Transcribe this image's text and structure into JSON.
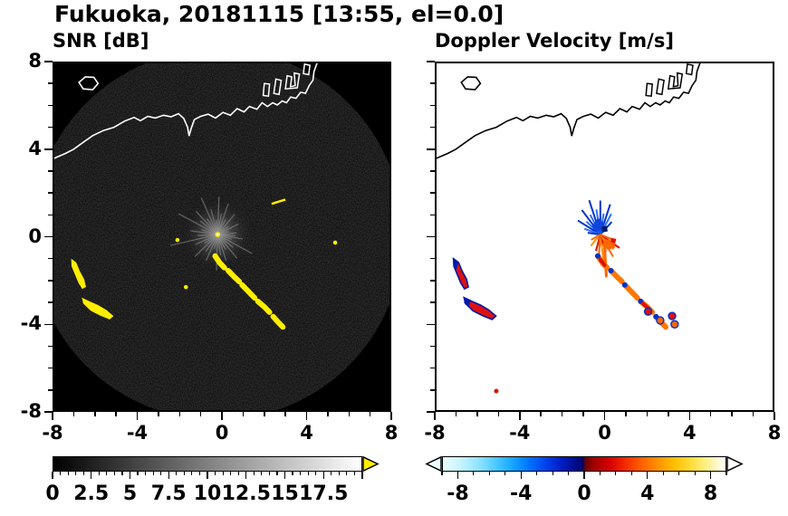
{
  "title": "Fukuoka, 20181115 [13:55, el=0.0]",
  "panels": {
    "snr": {
      "label": "SNR [dB]",
      "bg": "#000000",
      "coast_color": "#ffffff",
      "axis_ticks": [
        -8,
        -4,
        0,
        4,
        8
      ],
      "axis_range": [
        -8,
        8
      ]
    },
    "vel": {
      "label": "Doppler Velocity [m/s]",
      "bg": "#ffffff",
      "coast_color": "#000000",
      "axis_ticks": [
        -8,
        -4,
        0,
        4,
        8
      ],
      "axis_range": [
        -8,
        8
      ]
    }
  },
  "colorbars": {
    "snr": {
      "range": [
        0,
        20
      ],
      "major_step": 2.5,
      "minor_step": 0.5,
      "labels": [
        0,
        2.5,
        5,
        7.5,
        10,
        12.5,
        15,
        17.5
      ],
      "gradient": [
        [
          0,
          "#000000"
        ],
        [
          100,
          "#ffffff"
        ]
      ],
      "over_arrow_color": "#ffee00"
    },
    "vel": {
      "range": [
        -9,
        9
      ],
      "major_step": 4,
      "minor_step": 1,
      "labels": [
        -8,
        -4,
        0,
        4,
        8
      ],
      "gradient": [
        [
          0,
          "#eaffff"
        ],
        [
          6,
          "#c8f4ff"
        ],
        [
          12,
          "#96e6ff"
        ],
        [
          18,
          "#55ccff"
        ],
        [
          24,
          "#19aaff"
        ],
        [
          30,
          "#0077ff"
        ],
        [
          36,
          "#0044ee"
        ],
        [
          41,
          "#0022cc"
        ],
        [
          46,
          "#000f99"
        ],
        [
          49.6,
          "#000566"
        ],
        [
          50.4,
          "#6e0000"
        ],
        [
          54,
          "#a80000"
        ],
        [
          59,
          "#d40000"
        ],
        [
          64,
          "#f32500"
        ],
        [
          70,
          "#ff5e00"
        ],
        [
          76,
          "#ff9100"
        ],
        [
          82,
          "#ffc000"
        ],
        [
          88,
          "#ffdd3c"
        ],
        [
          93,
          "#ffef85"
        ],
        [
          100,
          "#ffffff"
        ]
      ],
      "under_arrow_color": "#eaffff",
      "over_arrow_color": "#ffffff"
    }
  },
  "chart_data": {
    "type": "heatmap",
    "title": "Fukuoka, 20181115 [13:55, el=0.0]",
    "panel_titles": [
      "SNR [dB]",
      "Doppler Velocity [m/s]"
    ],
    "xlim": [
      -8,
      8
    ],
    "ylim": [
      -8,
      8
    ],
    "x_ticks": [
      -8,
      -4,
      0,
      4,
      8
    ],
    "y_ticks": [
      -8,
      -4,
      0,
      4,
      8
    ],
    "snr_scale": {
      "min": 0,
      "max": 20,
      "label_ticks": [
        0,
        2.5,
        5,
        7.5,
        10,
        12.5,
        15,
        17.5
      ],
      "units": "dB"
    },
    "vel_scale": {
      "min": -9,
      "max": 9,
      "label_ticks": [
        -8,
        -4,
        0,
        4,
        8
      ],
      "units": "m/s"
    },
    "radar_center": [
      -0.2,
      0.1
    ],
    "coastline": [
      [
        -8.0,
        3.55
      ],
      [
        -7.4,
        3.8
      ],
      [
        -7.0,
        4.0
      ],
      [
        -6.5,
        4.35
      ],
      [
        -6.1,
        4.62
      ],
      [
        -5.6,
        4.85
      ],
      [
        -5.1,
        5.0
      ],
      [
        -4.6,
        5.28
      ],
      [
        -4.15,
        5.45
      ],
      [
        -3.85,
        5.3
      ],
      [
        -3.5,
        5.5
      ],
      [
        -3.15,
        5.42
      ],
      [
        -2.75,
        5.55
      ],
      [
        -2.4,
        5.48
      ],
      [
        -2.05,
        5.62
      ],
      [
        -1.8,
        5.4
      ],
      [
        -1.62,
        5.0
      ],
      [
        -1.55,
        4.6
      ],
      [
        -1.45,
        4.95
      ],
      [
        -1.3,
        5.35
      ],
      [
        -1.0,
        5.5
      ],
      [
        -0.65,
        5.6
      ],
      [
        -0.3,
        5.42
      ],
      [
        0.05,
        5.68
      ],
      [
        0.4,
        5.55
      ],
      [
        0.72,
        5.85
      ],
      [
        1.05,
        5.7
      ],
      [
        1.3,
        5.95
      ],
      [
        1.65,
        5.82
      ],
      [
        1.9,
        6.12
      ],
      [
        2.15,
        5.95
      ],
      [
        2.4,
        6.12
      ],
      [
        2.62,
        6.02
      ],
      [
        2.85,
        6.2
      ],
      [
        3.05,
        6.12
      ],
      [
        3.25,
        6.38
      ],
      [
        3.5,
        6.32
      ],
      [
        3.72,
        6.6
      ],
      [
        3.95,
        6.55
      ],
      [
        4.12,
        6.9
      ],
      [
        4.3,
        7.15
      ],
      [
        4.35,
        7.55
      ],
      [
        4.52,
        8.0
      ]
    ],
    "island": [
      [
        -6.75,
        7.05
      ],
      [
        -6.45,
        7.3
      ],
      [
        -6.05,
        7.28
      ],
      [
        -5.85,
        7.0
      ],
      [
        -6.1,
        6.72
      ],
      [
        -6.55,
        6.75
      ]
    ],
    "docks": [
      [
        [
          1.95,
          6.45
        ],
        [
          2.0,
          7.0
        ],
        [
          2.25,
          6.97
        ],
        [
          2.2,
          6.42
        ]
      ],
      [
        [
          2.45,
          6.55
        ],
        [
          2.55,
          7.2
        ],
        [
          2.8,
          7.14
        ],
        [
          2.7,
          6.5
        ]
      ],
      [
        [
          3.0,
          6.75
        ],
        [
          3.08,
          7.35
        ],
        [
          3.3,
          7.3
        ],
        [
          3.24,
          6.85
        ],
        [
          3.46,
          6.9
        ],
        [
          3.42,
          7.48
        ],
        [
          3.66,
          7.43
        ],
        [
          3.56,
          6.8
        ]
      ],
      [
        [
          3.85,
          7.45
        ],
        [
          3.9,
          7.88
        ],
        [
          4.16,
          7.83
        ],
        [
          4.1,
          7.4
        ]
      ]
    ],
    "blobs": [
      {
        "name": "west-arc",
        "points": [
          [
            -7.12,
            -1.0
          ],
          [
            -6.88,
            -1.18
          ],
          [
            -6.72,
            -1.55
          ],
          [
            -6.5,
            -1.95
          ],
          [
            -6.42,
            -2.3
          ],
          [
            -6.6,
            -2.38
          ],
          [
            -6.78,
            -2.1
          ],
          [
            -6.95,
            -1.7
          ],
          [
            -7.1,
            -1.35
          ]
        ],
        "snr_fill": "#ffee00",
        "vel_fill": "#dd1111",
        "vel_edge": "#0018aa",
        "vel_patch": [
          [
            -7.1,
            -1.05
          ],
          [
            -6.9,
            -1.2
          ],
          [
            -6.98,
            -1.5
          ],
          [
            -7.12,
            -1.35
          ]
        ]
      },
      {
        "name": "southwest-bar",
        "points": [
          [
            -6.62,
            -2.78
          ],
          [
            -6.25,
            -2.95
          ],
          [
            -5.85,
            -3.12
          ],
          [
            -5.45,
            -3.35
          ],
          [
            -5.12,
            -3.62
          ],
          [
            -5.3,
            -3.78
          ],
          [
            -5.75,
            -3.6
          ],
          [
            -6.2,
            -3.38
          ],
          [
            -6.55,
            -3.05
          ]
        ],
        "snr_fill": "#ffee00",
        "vel_fill": "#dd1111",
        "vel_edge": "#0018aa",
        "vel_patch": [
          [
            -6.6,
            -2.8
          ],
          [
            -6.3,
            -2.95
          ],
          [
            -6.42,
            -3.18
          ],
          [
            -6.62,
            -3.02
          ]
        ]
      }
    ],
    "chain": {
      "segments": [
        [
          [
            -0.32,
            -0.88
          ],
          [
            -0.1,
            -1.2
          ],
          [
            0.12,
            -1.42
          ]
        ],
        [
          [
            0.3,
            -1.55
          ],
          [
            0.6,
            -1.85
          ],
          [
            0.82,
            -2.05
          ]
        ],
        [
          [
            0.95,
            -2.2
          ],
          [
            1.3,
            -2.55
          ],
          [
            1.55,
            -2.8
          ]
        ],
        [
          [
            1.7,
            -2.95
          ],
          [
            2.0,
            -3.2
          ],
          [
            2.25,
            -3.45
          ]
        ],
        [
          [
            2.42,
            -3.65
          ],
          [
            2.7,
            -3.95
          ],
          [
            2.88,
            -4.12
          ]
        ]
      ],
      "snr_color": "#ffee00",
      "vel_color": "#ff7700",
      "vel_dots": [
        [
          -0.32,
          -0.88
        ],
        [
          0.3,
          -1.55
        ],
        [
          0.95,
          -2.2
        ],
        [
          1.7,
          -2.95
        ],
        [
          2.42,
          -3.65
        ]
      ],
      "vel_red": [
        [
          [
            -0.2,
            -1.05
          ],
          [
            0.0,
            -1.3
          ]
        ],
        [
          [
            1.8,
            -3.05
          ],
          [
            2.1,
            -3.3
          ]
        ]
      ]
    },
    "snr": {
      "ray_color": "#9a9a9a",
      "rays": [
        [
          5,
          0.9
        ],
        [
          16,
          0.55
        ],
        [
          27,
          1.1
        ],
        [
          38,
          0.65
        ],
        [
          50,
          1.25
        ],
        [
          62,
          0.8
        ],
        [
          71,
          1.55
        ],
        [
          80,
          1.0
        ],
        [
          88,
          1.8
        ],
        [
          96,
          0.7
        ],
        [
          105,
          1.25
        ],
        [
          114,
          1.9
        ],
        [
          124,
          0.9
        ],
        [
          133,
          1.5
        ],
        [
          142,
          1.05
        ],
        [
          152,
          2.1
        ],
        [
          163,
          0.8
        ],
        [
          172,
          1.3
        ],
        [
          183,
          0.95
        ],
        [
          193,
          2.3
        ],
        [
          204,
          1.15
        ],
        [
          214,
          0.75
        ],
        [
          224,
          1.5
        ],
        [
          235,
          1.0
        ],
        [
          246,
          1.35
        ],
        [
          257,
          0.7
        ],
        [
          268,
          1.7
        ],
        [
          278,
          1.0
        ],
        [
          288,
          1.3
        ],
        [
          298,
          0.8
        ],
        [
          309,
          1.45
        ],
        [
          320,
          0.95
        ],
        [
          331,
          1.85
        ],
        [
          342,
          0.7
        ],
        [
          350,
          1.2
        ],
        [
          357,
          0.85
        ]
      ],
      "streak": [
        [
          2.35,
          1.5
        ],
        [
          3.0,
          1.7
        ]
      ],
      "specks": [
        [
          -2.1,
          -0.15
        ],
        [
          -1.7,
          -2.3
        ],
        [
          5.35,
          -0.27
        ]
      ],
      "center_dot_color": "#ffee00"
    },
    "vel": {
      "blue": "#0033cc",
      "blue2": "#2b72ff",
      "orange": "#ff6600",
      "orange2": "#ff9100",
      "red": "#dd1100",
      "spikes": [
        [
          48,
          0.8,
          "b"
        ],
        [
          62,
          1.1,
          "b"
        ],
        [
          72,
          1.5,
          "b"
        ],
        [
          81,
          1.0,
          "b"
        ],
        [
          90,
          1.6,
          "b"
        ],
        [
          99,
          1.2,
          "b"
        ],
        [
          108,
          1.7,
          "b"
        ],
        [
          117,
          1.05,
          "b"
        ],
        [
          127,
          1.45,
          "b"
        ],
        [
          137,
          0.9,
          "b"
        ],
        [
          148,
          1.25,
          "b"
        ],
        [
          160,
          0.8,
          "b"
        ],
        [
          172,
          0.6,
          "b"
        ],
        [
          210,
          0.5,
          "o"
        ],
        [
          230,
          0.7,
          "o"
        ],
        [
          255,
          0.8,
          "o"
        ],
        [
          266,
          1.05,
          "o"
        ],
        [
          277,
          1.5,
          "o"
        ],
        [
          288,
          0.85,
          "o"
        ],
        [
          300,
          1.2,
          "o"
        ],
        [
          312,
          0.95,
          "o"
        ],
        [
          325,
          1.1,
          "o"
        ],
        [
          338,
          0.7,
          "o"
        ]
      ],
      "center_blobs": [
        {
          "points": [
            [
              -0.6,
              0.5
            ],
            [
              -0.3,
              0.85
            ],
            [
              0.0,
              0.6
            ],
            [
              -0.1,
              0.3
            ],
            [
              -0.45,
              0.25
            ]
          ],
          "fill": "#1144dd"
        },
        {
          "points": [
            [
              -0.15,
              0.45
            ],
            [
              0.1,
              0.5
            ],
            [
              0.15,
              0.25
            ],
            [
              -0.1,
              0.2
            ]
          ],
          "fill": "#001a66"
        },
        {
          "points": [
            [
              0.0,
              -0.1
            ],
            [
              0.45,
              -0.2
            ],
            [
              0.5,
              -0.5
            ],
            [
              0.15,
              -0.6
            ],
            [
              -0.1,
              -0.4
            ]
          ],
          "fill": "#ff6600"
        },
        {
          "points": [
            [
              0.3,
              -0.05
            ],
            [
              0.55,
              -0.1
            ],
            [
              0.5,
              -0.3
            ],
            [
              0.3,
              -0.25
            ]
          ],
          "fill": "#dd1100"
        }
      ],
      "down_streak": [
        [
          0.0,
          -0.5
        ],
        [
          0.08,
          -1.8
        ]
      ],
      "extra_blobs": [
        [
          2.05,
          -3.42
        ],
        [
          2.62,
          -3.82
        ],
        [
          3.18,
          -3.62
        ],
        [
          3.3,
          -4.0
        ]
      ],
      "speck": [
        -5.1,
        -7.05
      ]
    }
  }
}
